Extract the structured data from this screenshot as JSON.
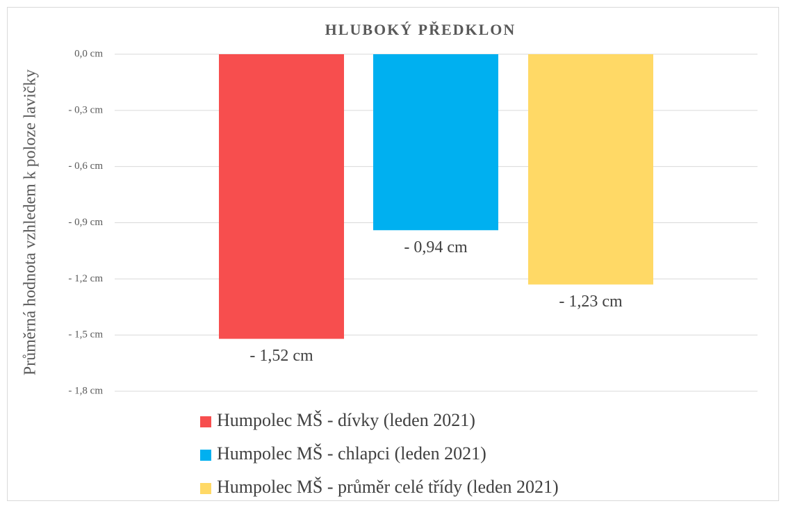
{
  "chart_data": {
    "type": "bar",
    "title": "HLUBOKÝ PŘEDKLON",
    "ylabel": "Průměrná hodnota vzhledem k poloze lavičky",
    "series": [
      {
        "name": "Humpolec MŠ - dívky (leden 2021)",
        "color": "#f74e4e",
        "values": [
          -1.52
        ],
        "value_labels": [
          "- 1,52 cm"
        ]
      },
      {
        "name": "Humpolec MŠ - chlapci (leden 2021)",
        "color": "#00b0f0",
        "values": [
          -0.94
        ],
        "value_labels": [
          "- 0,94 cm"
        ]
      },
      {
        "name": "Humpolec MŠ - průměr celé třídy (leden 2021)",
        "color": "#ffd966",
        "values": [
          -1.23
        ],
        "value_labels": [
          "- 1,23 cm"
        ]
      }
    ],
    "ylim": [
      -1.8,
      0
    ],
    "yticks": [
      {
        "value": 0,
        "label": "0,0 cm"
      },
      {
        "value": -0.3,
        "label": "- 0,3 cm"
      },
      {
        "value": -0.6,
        "label": "- 0,6 cm"
      },
      {
        "value": -0.9,
        "label": "- 0,9 cm"
      },
      {
        "value": -1.2,
        "label": "- 1,2 cm"
      },
      {
        "value": -1.5,
        "label": "- 1,5 cm"
      },
      {
        "value": -1.8,
        "label": "- 1,8 cm"
      }
    ],
    "grid": true,
    "legend": "bottom"
  }
}
